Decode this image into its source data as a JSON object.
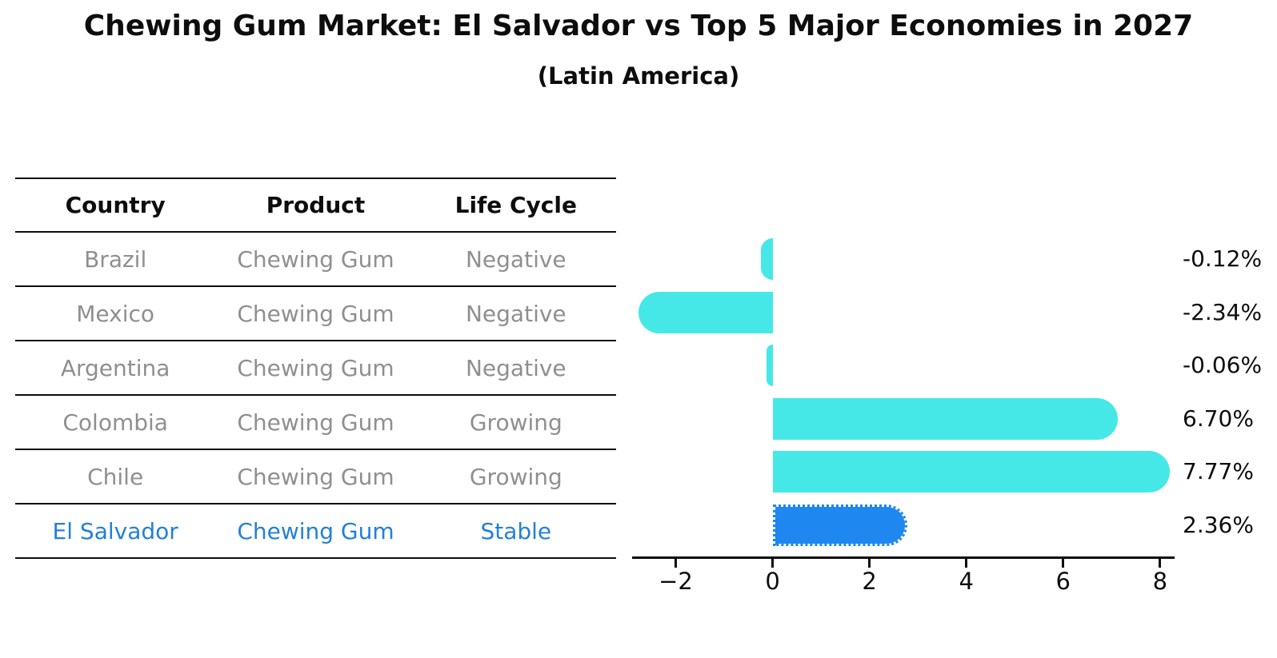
{
  "title": "Chewing Gum Market: El Salvador vs Top 5 Major Economies in 2027",
  "subtitle": "(Latin America)",
  "colors": {
    "bar": "#45e8e6",
    "highlight_bar": "#1e87f0",
    "highlight_text": "#2380d8",
    "table_text": "#8f8f8f",
    "header_text": "#0d0d0d",
    "axis": "#0d0d0d"
  },
  "table": {
    "headers": [
      "Country",
      "Product",
      "Life Cycle"
    ],
    "rows": [
      {
        "country": "Brazil",
        "product": "Chewing Gum",
        "life_cycle": "Negative",
        "highlight": false
      },
      {
        "country": "Mexico",
        "product": "Chewing Gum",
        "life_cycle": "Negative",
        "highlight": false
      },
      {
        "country": "Argentina",
        "product": "Chewing Gum",
        "life_cycle": "Negative",
        "highlight": false
      },
      {
        "country": "Colombia",
        "product": "Chewing Gum",
        "life_cycle": "Growing",
        "highlight": false
      },
      {
        "country": "Chile",
        "product": "Chewing Gum",
        "life_cycle": "Growing",
        "highlight": false
      },
      {
        "country": "El Salvador",
        "product": "Chewing Gum",
        "life_cycle": "Stable",
        "highlight": true
      }
    ]
  },
  "chart_data": {
    "type": "bar",
    "orientation": "horizontal",
    "title": "Chewing Gum Market: El Salvador vs Top 5 Major Economies in 2027",
    "subtitle": "(Latin America)",
    "categories": [
      "Brazil",
      "Mexico",
      "Argentina",
      "Colombia",
      "Chile",
      "El Salvador"
    ],
    "values": [
      -0.12,
      -2.34,
      -0.06,
      6.7,
      7.77,
      2.36
    ],
    "value_labels": [
      "-0.12%",
      "-2.34%",
      "-0.06%",
      "6.70%",
      "7.77%",
      "2.36%"
    ],
    "xticks": [
      -2,
      0,
      2,
      4,
      6,
      8
    ],
    "xtick_labels": [
      "−2",
      "0",
      "2",
      "4",
      "6",
      "8"
    ],
    "xlim": [
      -2.9,
      8.3
    ],
    "xlabel": "",
    "ylabel": "",
    "grid": false,
    "legend": false,
    "highlight_index": 5,
    "highlight_style": "dotted-edge"
  }
}
